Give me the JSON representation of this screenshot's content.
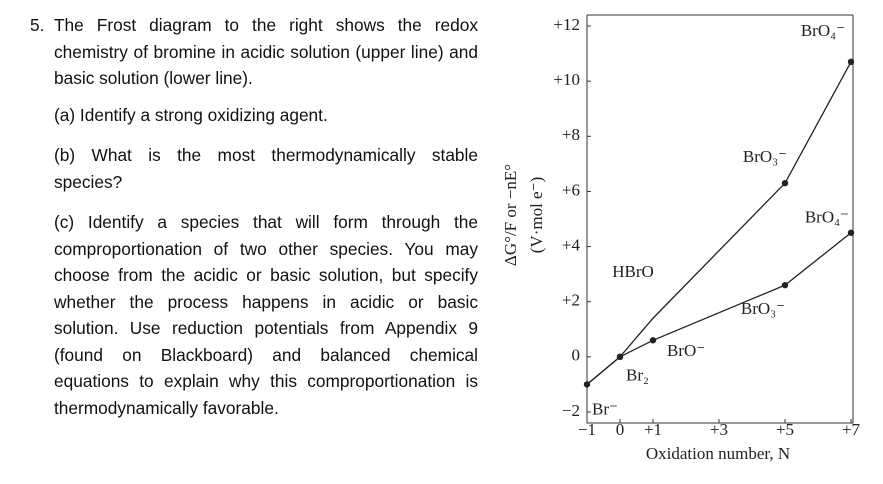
{
  "question": {
    "number": "5.",
    "stem": "The Frost diagram to the right shows the redox chemistry of bromine in acidic solution (upper line) and basic solution (lower line).",
    "parts": [
      "(a) Identify a strong oxidizing agent.",
      "(b) What is the most thermodynamically stable species?",
      "(c) Identify a species that will form through the comproportionation of two other species. You may choose from the acidic or basic solution, but specify whether the process happens in acidic or basic solution. Use reduction potentials from Appendix 9 (found on Blackboard) and balanced chemical equations to explain why this comproportionation is thermodynamically favorable."
    ]
  },
  "chart_data": {
    "type": "line",
    "x_label": "Oxidation number, N",
    "y_label": "ΔG°/F or −nE°",
    "y_unit": "(V·mol e⁻)",
    "x": [
      -1,
      0,
      1,
      5,
      7
    ],
    "series": [
      {
        "color": "#222222",
        "values": [
          -1,
          0,
          1.4,
          6.3,
          10.7
        ],
        "labels": [
          "Br⁻",
          null,
          "HBrO",
          "BrO₃⁻",
          "BrO₄⁻"
        ]
      },
      {
        "color": "#222222",
        "values": [
          -1,
          0,
          0.6,
          2.6,
          4.5
        ],
        "labels": [
          null,
          "Br₂",
          "BrO⁻",
          "BrO₃⁻",
          "BrO₄⁻"
        ]
      }
    ],
    "xlim": [
      -1,
      7
    ],
    "ylim": [
      -2.4,
      12.4
    ],
    "xticks": [
      {
        "value": -1,
        "label": "−1"
      },
      0,
      {
        "value": 1,
        "label": "+1"
      },
      {
        "value": 3,
        "label": "+3"
      },
      {
        "value": 5,
        "label": "+5"
      },
      {
        "value": 7,
        "label": "+7"
      }
    ],
    "yticks": [
      {
        "value": -2,
        "label": "−2"
      },
      0,
      {
        "value": 2,
        "label": "+2"
      },
      {
        "value": 4,
        "label": "+4"
      },
      {
        "value": 6,
        "label": "+6"
      },
      {
        "value": 8,
        "label": "+8"
      },
      {
        "value": 10,
        "label": "+10"
      },
      {
        "value": 12,
        "label": "+12"
      }
    ]
  }
}
